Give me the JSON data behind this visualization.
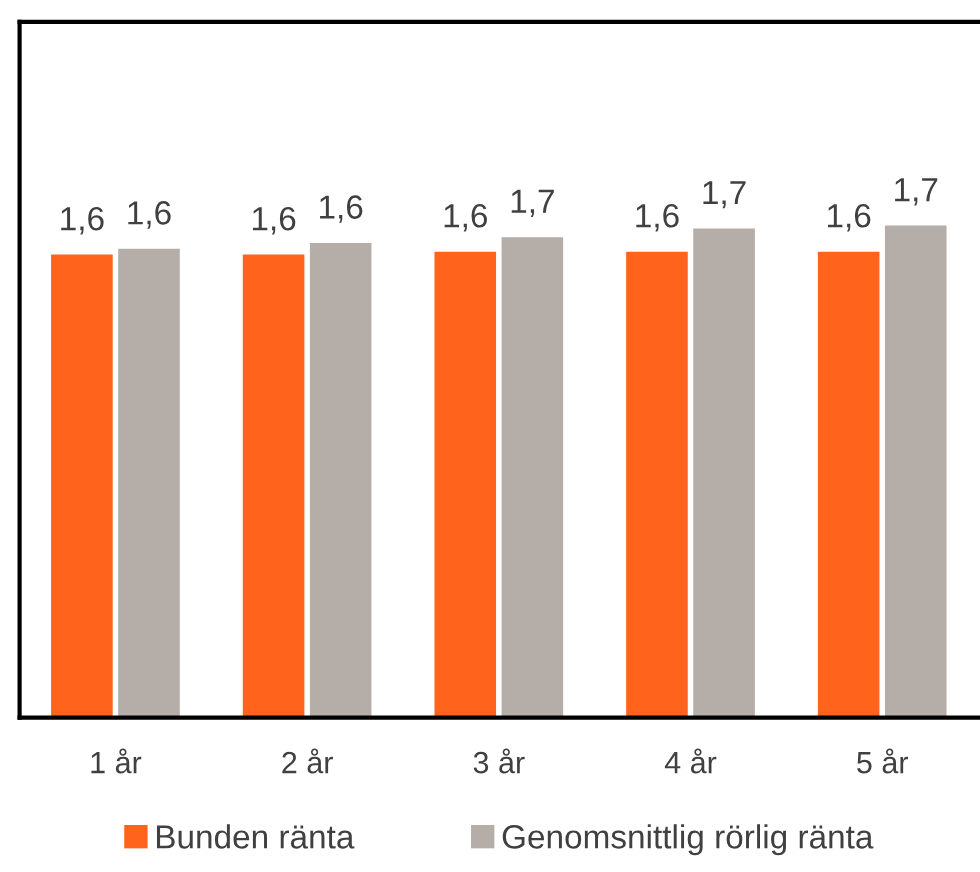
{
  "chart_data": {
    "type": "bar",
    "categories": [
      "1 år",
      "2 år",
      "3 år",
      "4 år",
      "5 år"
    ],
    "series": [
      {
        "name": "Bunden ränta",
        "color": "#ff631c",
        "values": [
          1.6,
          1.6,
          1.61,
          1.61,
          1.61
        ],
        "value_labels": [
          "1,6",
          "1,6",
          "1,6",
          "1,6",
          "1,6"
        ]
      },
      {
        "name": "Genomsnittlig rörlig ränta",
        "color": "#b4ada8",
        "values": [
          1.62,
          1.64,
          1.66,
          1.69,
          1.7
        ],
        "value_labels": [
          "1,6",
          "1,6",
          "1,7",
          "1,7",
          "1,7"
        ]
      }
    ],
    "ylim": [
      0,
      2.4
    ],
    "tick_labels": "x",
    "grid": false,
    "legend": "bottom"
  }
}
